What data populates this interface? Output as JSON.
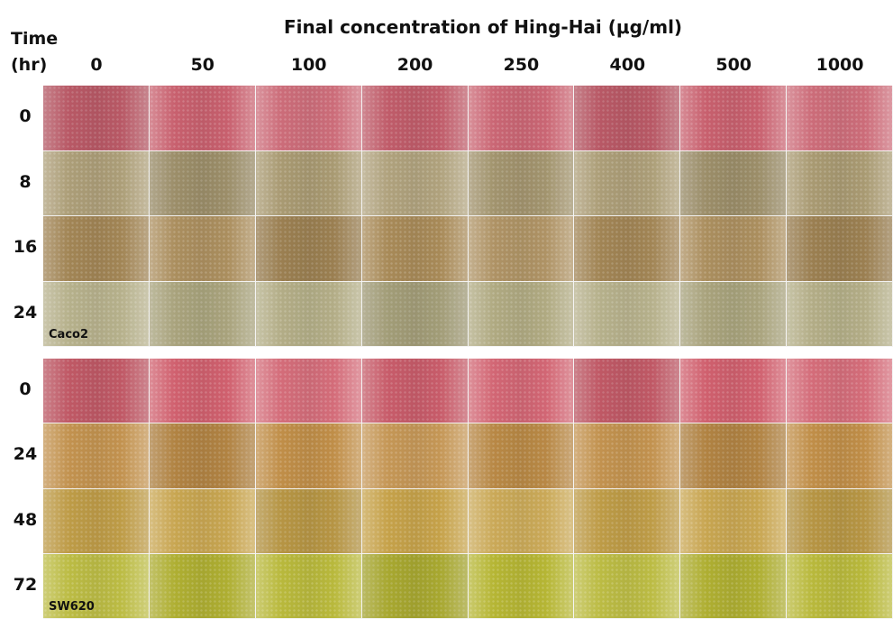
{
  "header": {
    "title": "Final concentration of Hing-Hai (μg/ml)",
    "time_label": "Time",
    "unit_label": "(hr)"
  },
  "columns": [
    "0",
    "50",
    "100",
    "200",
    "250",
    "400",
    "500",
    "1000"
  ],
  "panels": [
    {
      "label": "Caco2",
      "times": [
        "0",
        "8",
        "16",
        "24"
      ]
    },
    {
      "label": "SW620",
      "times": [
        "0",
        "24",
        "48",
        "72"
      ]
    }
  ]
}
